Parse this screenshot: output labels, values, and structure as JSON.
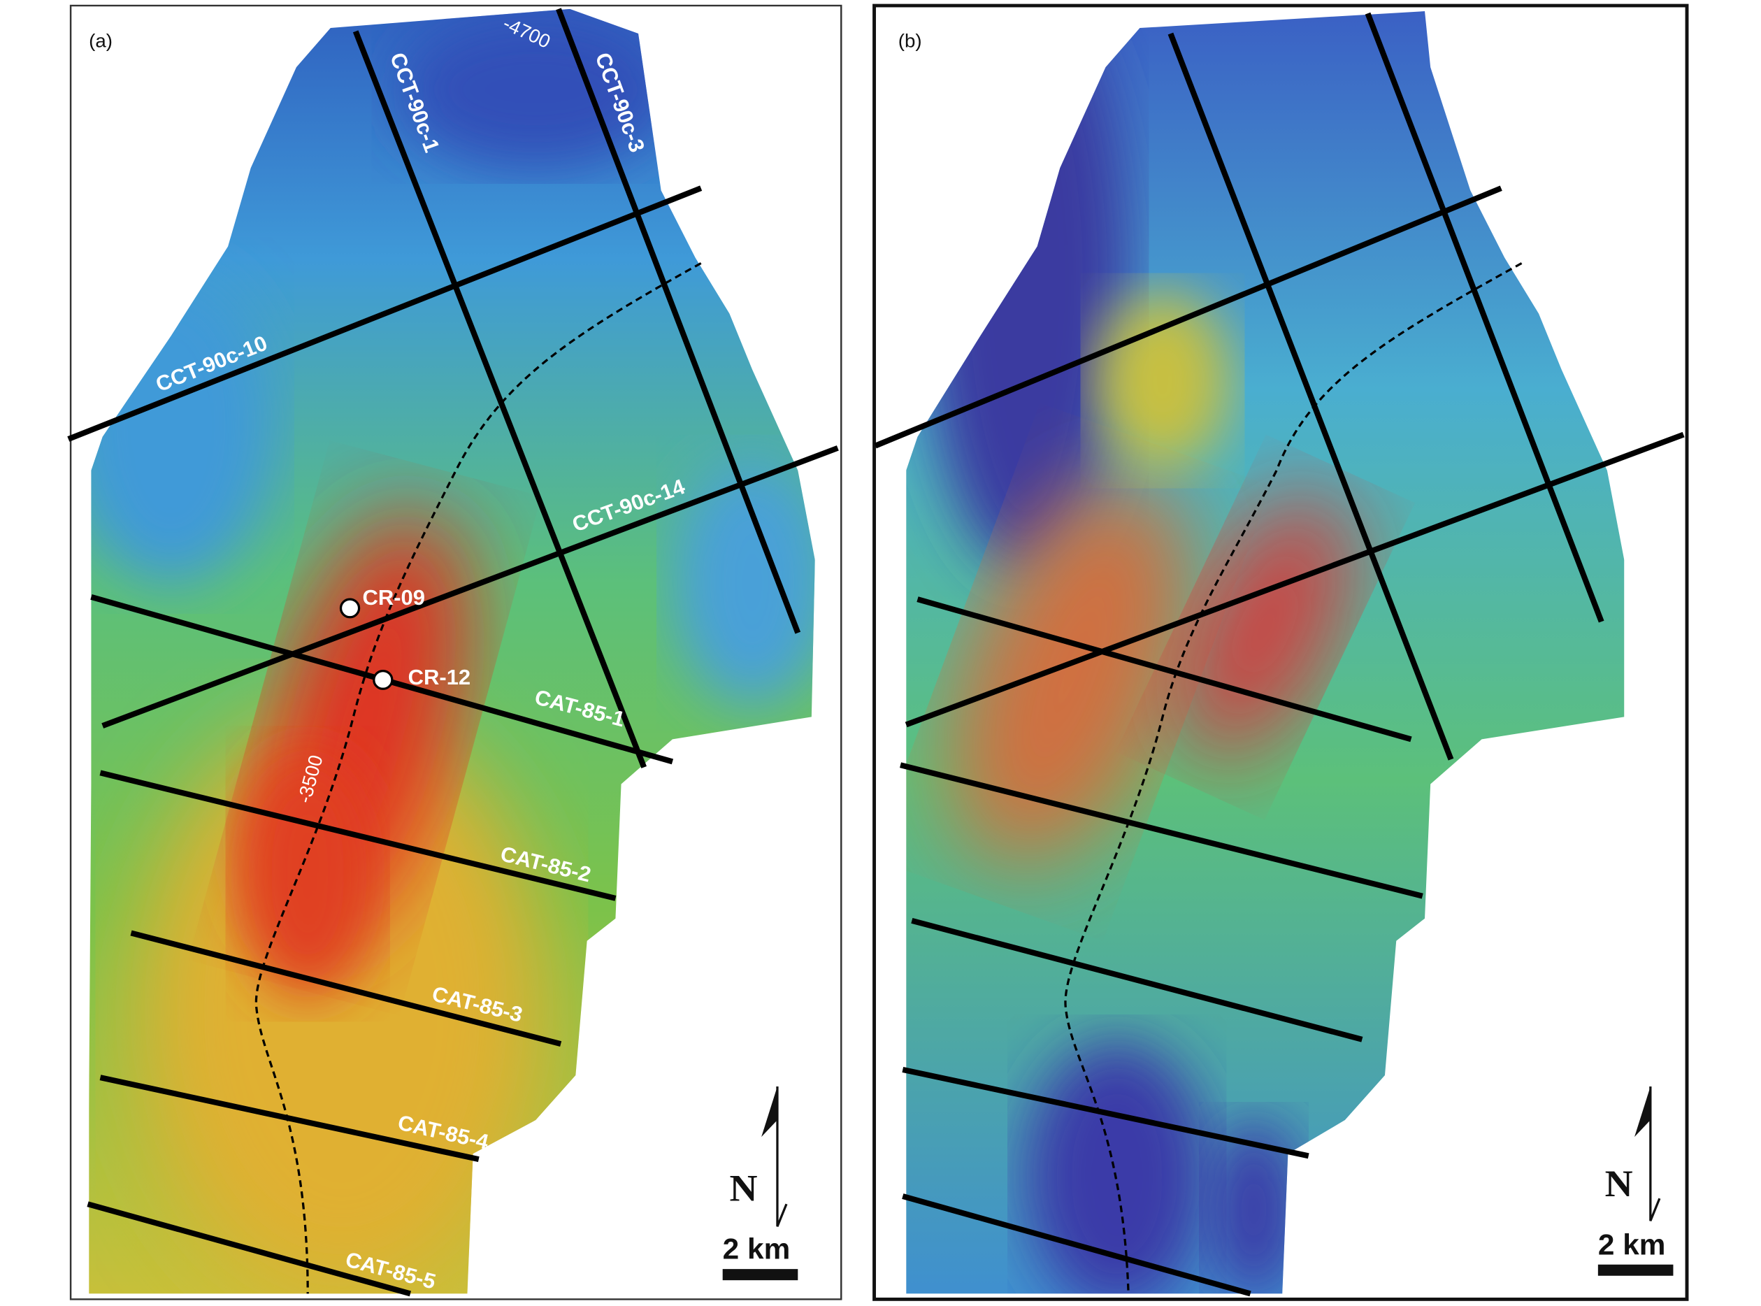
{
  "panels": [
    {
      "label": "(a)",
      "line_labels": [
        "CCT-90c-1",
        "CCT-90c-3",
        "CCT-90c-10",
        "CCT-90c-14",
        "CAT-85-1",
        "CAT-85-2",
        "CAT-85-3",
        "CAT-85-4",
        "CAT-85-5"
      ],
      "wells": [
        "CR-09",
        "CR-12"
      ],
      "contour_labels": [
        "-4700",
        "-3500"
      ],
      "north": "N",
      "scale": "2 km"
    },
    {
      "label": "(b)",
      "north": "N",
      "scale": "2 km"
    }
  ]
}
